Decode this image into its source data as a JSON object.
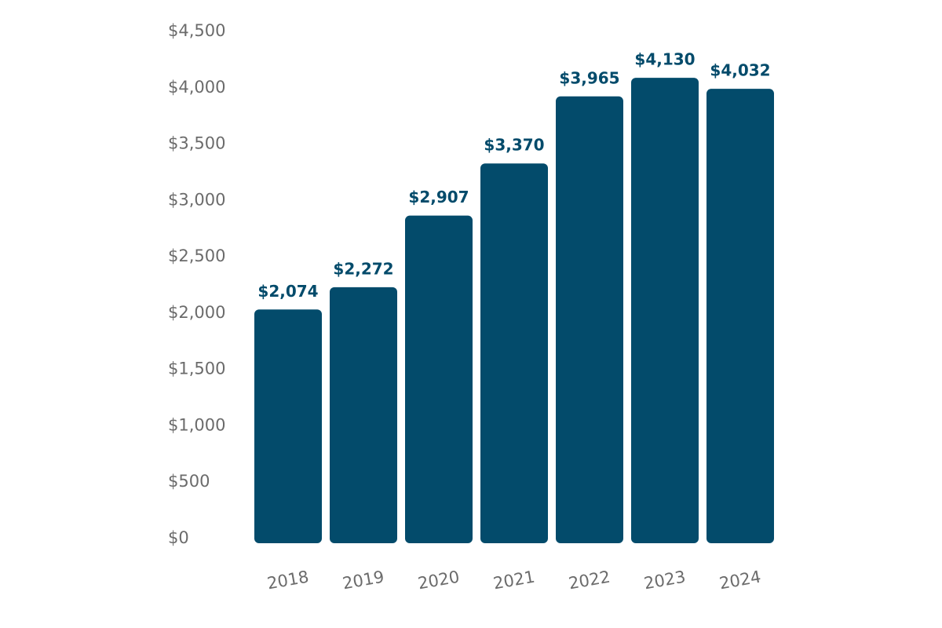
{
  "chart_data": {
    "type": "bar",
    "categories": [
      "2018",
      "2019",
      "2020",
      "2021",
      "2022",
      "2023",
      "2024"
    ],
    "values": [
      2074,
      2272,
      2907,
      3370,
      3965,
      4130,
      4032
    ],
    "value_labels": [
      "$2,074",
      "$2,272",
      "$2,907",
      "$3,370",
      "$3,965",
      "$4,130",
      "$4,032"
    ],
    "color": "#034b6b",
    "ylim": [
      0,
      4500
    ],
    "yticks": [
      {
        "value": 0,
        "label": "$0"
      },
      {
        "value": 500,
        "label": "$500"
      },
      {
        "value": 1000,
        "label": "$1,000"
      },
      {
        "value": 1500,
        "label": "$1,500"
      },
      {
        "value": 2000,
        "label": "$2,000"
      },
      {
        "value": 2500,
        "label": "$2,500"
      },
      {
        "value": 3000,
        "label": "$3,000"
      },
      {
        "value": 3500,
        "label": "$3,500"
      },
      {
        "value": 4000,
        "label": "$4,000"
      },
      {
        "value": 4500,
        "label": "$4,500"
      }
    ],
    "grid": false
  }
}
